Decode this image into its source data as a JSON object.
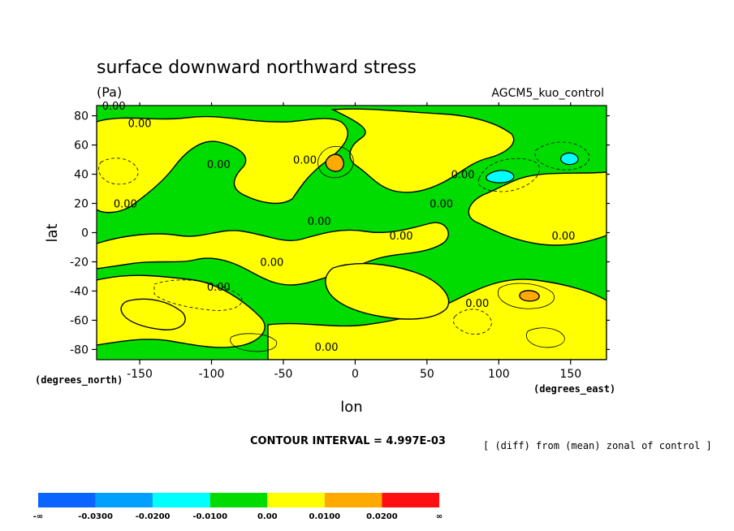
{
  "chart_data": {
    "type": "heatmap",
    "title": "surface downward northward stress",
    "units": "(Pa)",
    "model_label": "AGCM5_kuo_control",
    "xlabel": "lon",
    "ylabel": "lat",
    "x_unit_label": "(degrees_east)",
    "y_unit_label": "(degrees_north)",
    "xlim": [
      -180,
      175
    ],
    "ylim": [
      -87,
      87
    ],
    "x_ticks": [
      -150,
      -100,
      -50,
      0,
      50,
      100,
      150
    ],
    "x_tick_labels": [
      "-150",
      "-100",
      "-50",
      "0",
      "50",
      "100",
      "150"
    ],
    "y_ticks": [
      80,
      60,
      40,
      20,
      0,
      -20,
      -40,
      -60,
      -80
    ],
    "y_tick_labels": [
      "80",
      "60",
      "40",
      "20",
      "0",
      "-20",
      "-40",
      "-60",
      "-80"
    ],
    "contour_interval_text": "CONTOUR INTERVAL = 4.997E-03",
    "note": "[ (diff) from (mean) zonal of control ]",
    "levels": [
      -0.03,
      -0.02,
      -0.01,
      0.0,
      0.01,
      0.02
    ],
    "colorbar": {
      "colors": [
        "#0a64ff",
        "#00a0ff",
        "#00ffff",
        "#00dc00",
        "#ffff00",
        "#ffaa00",
        "#ff1010"
      ],
      "labels": [
        "-∞",
        "-0.0300",
        "-0.0200",
        "-0.0100",
        "0.00",
        "0.0100",
        "0.0200",
        "∞"
      ]
    },
    "contour_labels": [
      {
        "text": "0.00",
        "lon": -168,
        "lat": 87
      },
      {
        "text": "0.00",
        "lon": -150,
        "lat": 75
      },
      {
        "text": "0.00",
        "lon": -95,
        "lat": 47
      },
      {
        "text": "0.00",
        "lon": -35,
        "lat": 50
      },
      {
        "text": "0.00",
        "lon": 75,
        "lat": 40
      },
      {
        "text": "0.00",
        "lon": -160,
        "lat": 20
      },
      {
        "text": "0.00",
        "lon": 60,
        "lat": 20
      },
      {
        "text": "0.00",
        "lon": -25,
        "lat": 8
      },
      {
        "text": "0.00",
        "lon": 32,
        "lat": -2
      },
      {
        "text": "0.00",
        "lon": 145,
        "lat": -2
      },
      {
        "text": "0.00",
        "lon": -58,
        "lat": -20
      },
      {
        "text": "0.00",
        "lon": -95,
        "lat": -37
      },
      {
        "text": "0.00",
        "lon": 85,
        "lat": -48
      },
      {
        "text": "0.00",
        "lon": -20,
        "lat": -78
      }
    ],
    "colors": {
      "band_neg": "#00dc00",
      "band_pos": "#ffff00",
      "band_pos2": "#ffaa00",
      "band_neg2": "#00ffff",
      "band_neg3": "#00a0ff"
    }
  }
}
